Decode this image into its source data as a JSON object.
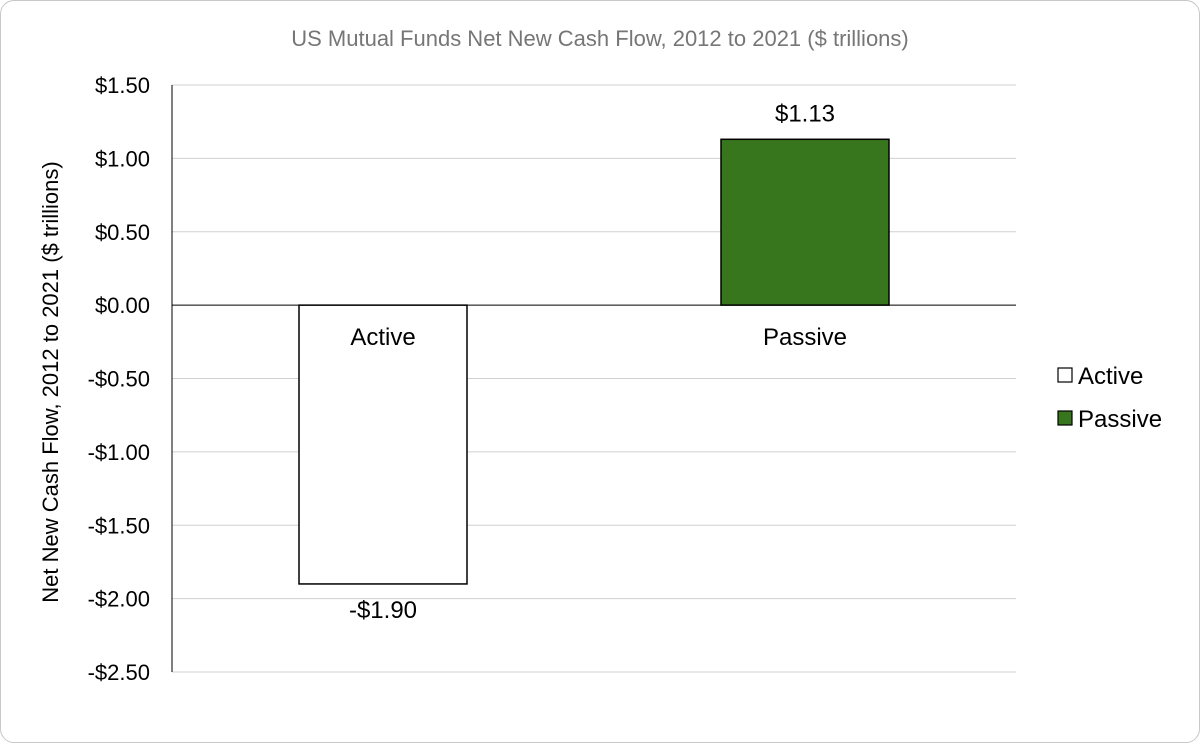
{
  "chart_data": {
    "type": "bar",
    "title": "US Mutual Funds Net New Cash Flow, 2012 to 2021 ($ trillions)",
    "xlabel": "",
    "ylabel": "Net New Cash Flow, 2012 to 2021 ($ trillions)",
    "categories": [
      "Active",
      "Passive"
    ],
    "values": [
      -1.9,
      1.13
    ],
    "data_labels": [
      "-$1.90",
      "$1.13"
    ],
    "bar_fill": [
      "#ffffff",
      "#38761d"
    ],
    "bar_stroke": "#000000",
    "ylim": [
      -2.5,
      1.5
    ],
    "yticks": [
      1.5,
      1.0,
      0.5,
      0.0,
      -0.5,
      -1.0,
      -1.5,
      -2.0,
      -2.5
    ],
    "ytick_labels": [
      "$1.50",
      "$1.00",
      "$0.50",
      "$0.00",
      "-$0.50",
      "-$1.00",
      "-$1.50",
      "-$2.00",
      "-$2.50"
    ],
    "grid": true,
    "legend": {
      "position": "right",
      "entries": [
        {
          "label": "Active",
          "color": "#ffffff"
        },
        {
          "label": "Passive",
          "color": "#38761d"
        }
      ]
    }
  }
}
